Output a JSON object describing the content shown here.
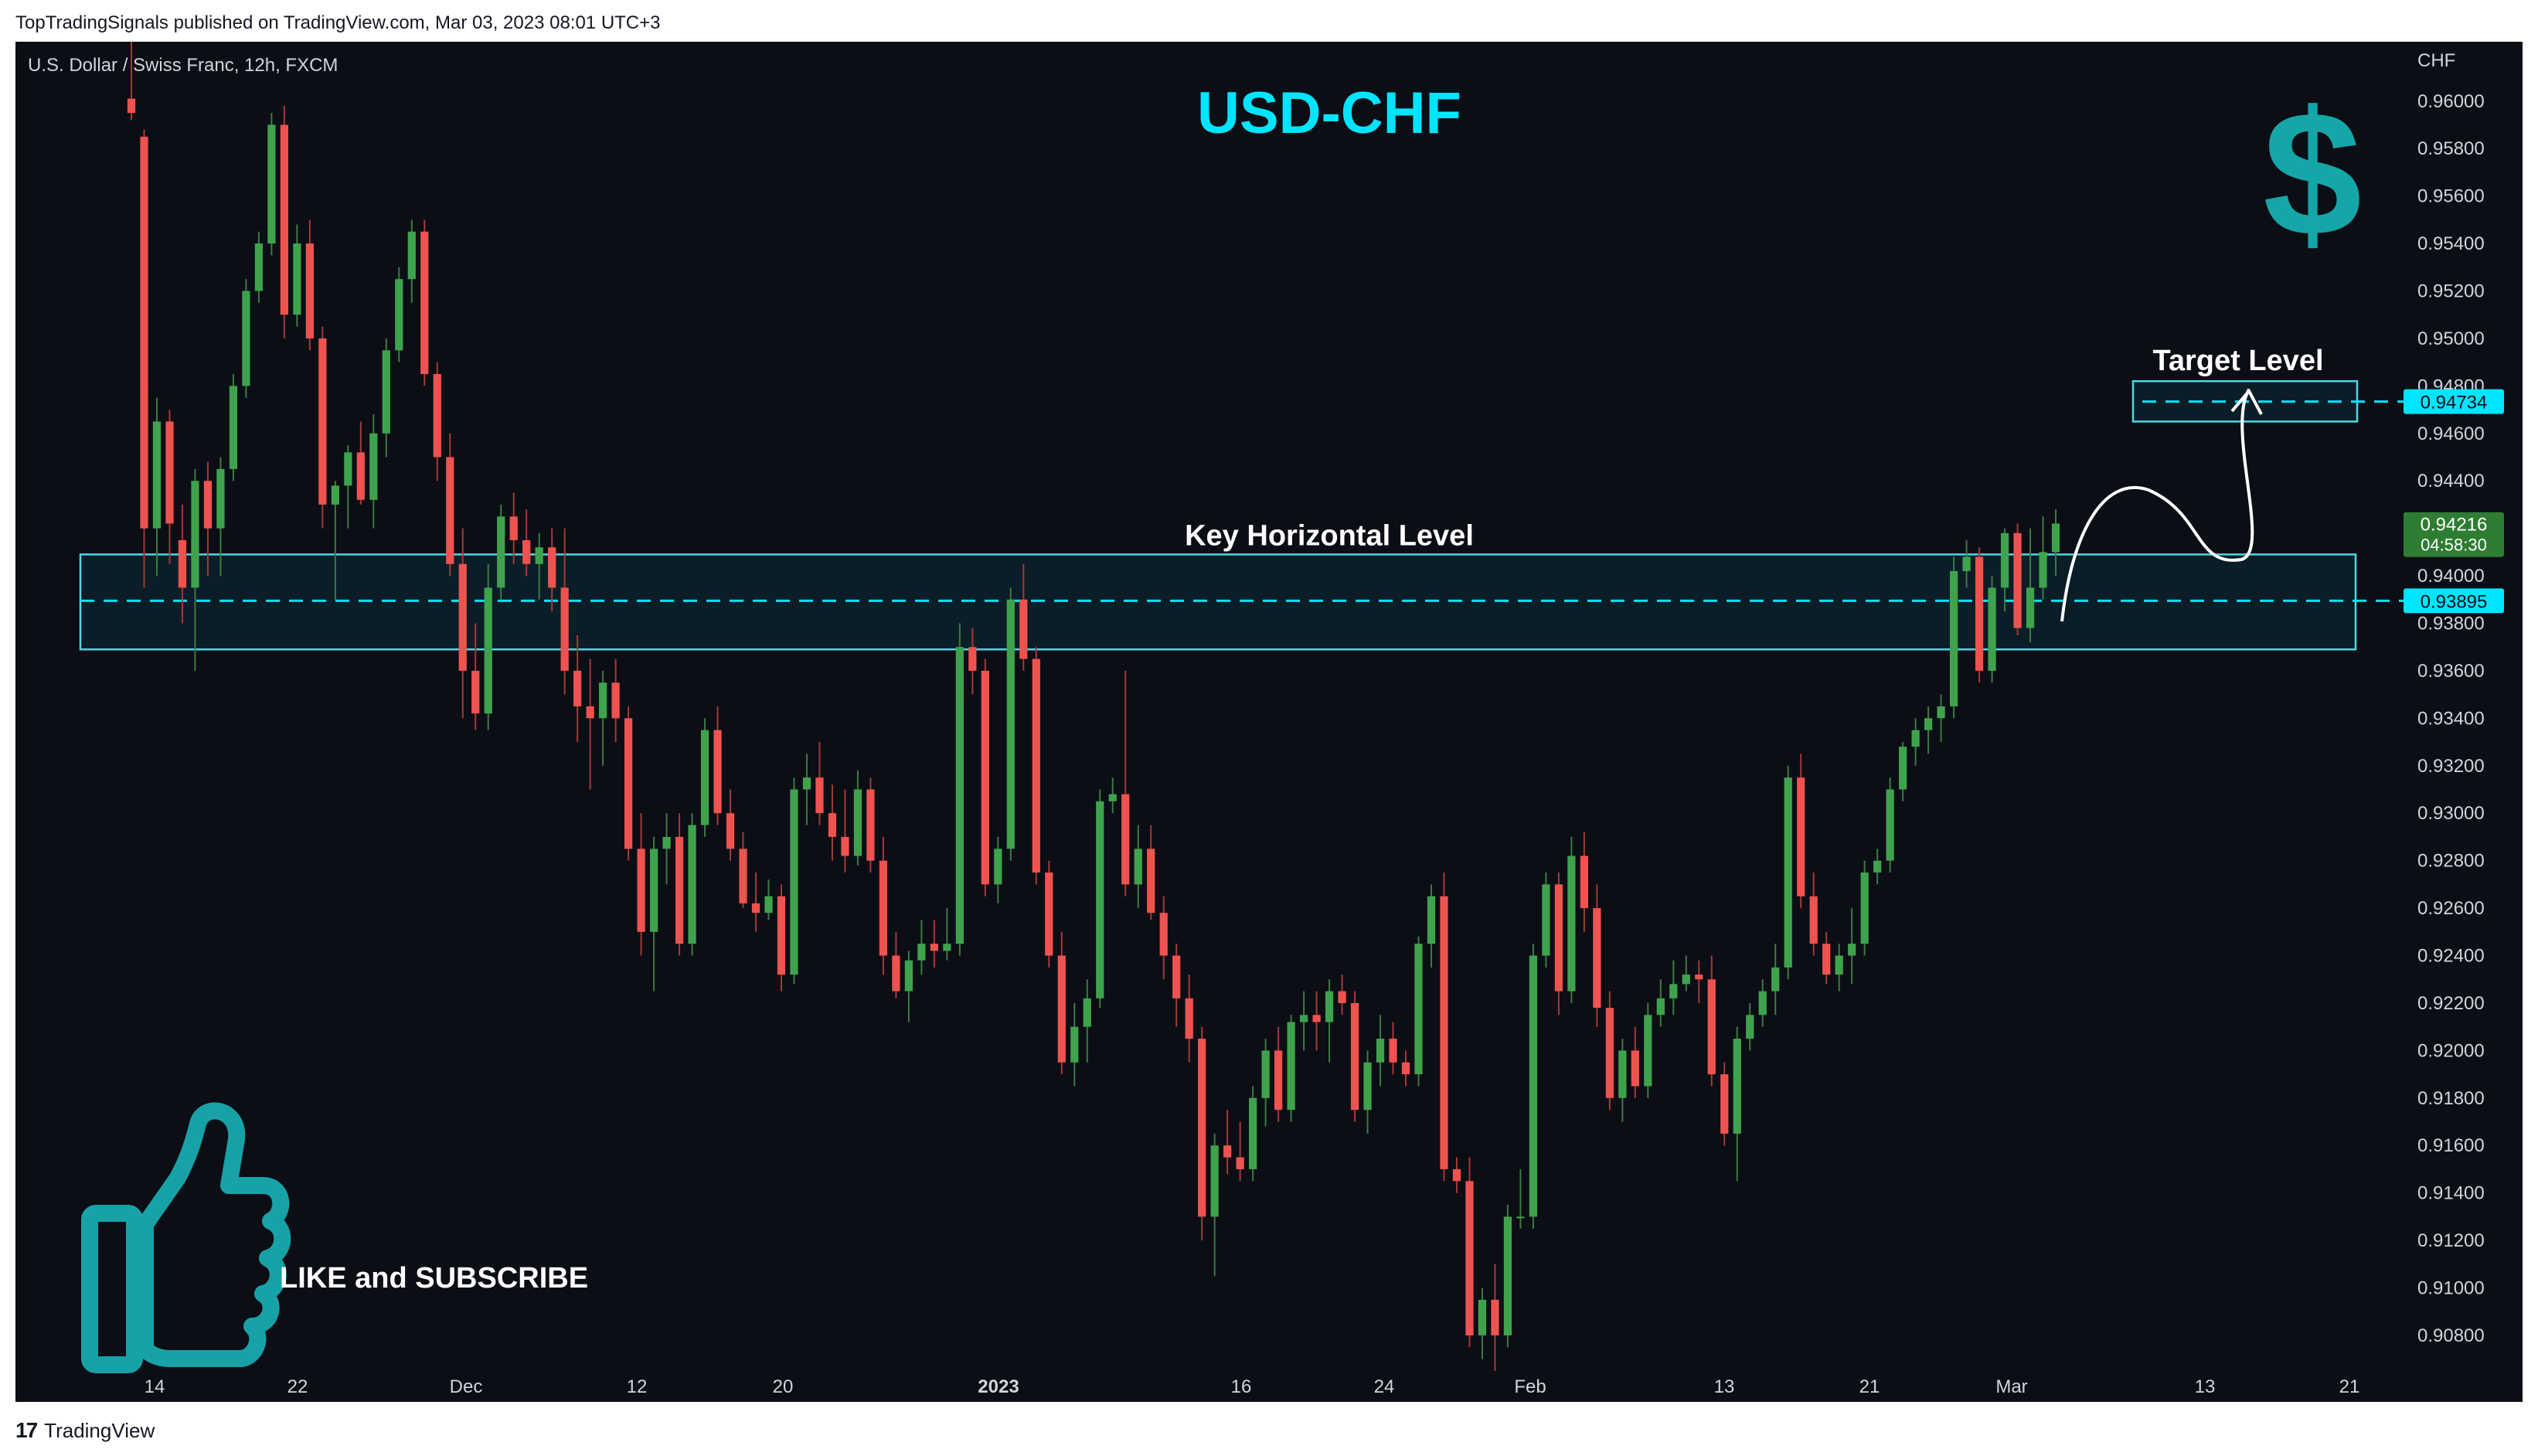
{
  "header": {
    "published": "TopTradingSignals published on TradingView.com, Mar 03, 2023 08:01 UTC+3"
  },
  "footer": {
    "brand": "TradingView",
    "logo_mark": "17"
  },
  "chart": {
    "symbol_info": "U.S. Dollar / Swiss Franc, 12h, FXCM",
    "title": "USD-CHF",
    "currency_label": "CHF",
    "key_level_label": "Key Horizontal Level",
    "target_level_label": "Target Level",
    "cta_text": "LIKE and SUBSCRIBE",
    "icons": [
      "dollar-sign-icon",
      "thumbs-up-icon"
    ],
    "colors": {
      "background": "#0c0e15",
      "up": "#26a69a",
      "up_body": "#3a9a4a",
      "down": "#ef5350",
      "accent": "#00e5ff",
      "price_badge": "#2e7d32"
    },
    "price_labels": {
      "current": "0.94216",
      "countdown": "04:58:30",
      "key_level": "0.93895",
      "target": "0.94734"
    }
  },
  "chart_data": {
    "type": "candlestick",
    "title": "USD-CHF",
    "ylabel": "CHF",
    "ylim": [
      0.9065,
      0.9625
    ],
    "y_ticks": [
      "0.96000",
      "0.95800",
      "0.95600",
      "0.95400",
      "0.95200",
      "0.95000",
      "0.94800",
      "0.94600",
      "0.94400",
      "0.94200",
      "0.94000",
      "0.93800",
      "0.93600",
      "0.93400",
      "0.93200",
      "0.93000",
      "0.92800",
      "0.92600",
      "0.92400",
      "0.92200",
      "0.92000",
      "0.91800",
      "0.91600",
      "0.91400",
      "0.91200",
      "0.91000",
      "0.90800"
    ],
    "x_ticks": [
      "14",
      "22",
      "Dec",
      "12",
      "20",
      "2023",
      "16",
      "24",
      "Feb",
      "13",
      "21",
      "Mar",
      "13",
      "21"
    ],
    "key_level": {
      "value": 0.93895,
      "zone": [
        0.9369,
        0.9409
      ]
    },
    "target_level": {
      "value": 0.94734,
      "zone": [
        0.9465,
        0.9482
      ]
    },
    "current_price": 0.94216,
    "candles_ohlc": [
      [
        0.9601,
        0.963,
        0.9592,
        0.9595
      ],
      [
        0.9585,
        0.9588,
        0.9395,
        0.942
      ],
      [
        0.942,
        0.9475,
        0.94,
        0.9465
      ],
      [
        0.9465,
        0.947,
        0.9405,
        0.9422
      ],
      [
        0.9415,
        0.943,
        0.938,
        0.9395
      ],
      [
        0.9395,
        0.9445,
        0.936,
        0.944
      ],
      [
        0.944,
        0.9448,
        0.94,
        0.942
      ],
      [
        0.942,
        0.945,
        0.94,
        0.9445
      ],
      [
        0.9445,
        0.9485,
        0.944,
        0.948
      ],
      [
        0.948,
        0.9525,
        0.9475,
        0.952
      ],
      [
        0.952,
        0.9545,
        0.9515,
        0.954
      ],
      [
        0.954,
        0.9595,
        0.9535,
        0.959
      ],
      [
        0.959,
        0.9598,
        0.95,
        0.951
      ],
      [
        0.951,
        0.9548,
        0.9505,
        0.954
      ],
      [
        0.954,
        0.955,
        0.9495,
        0.95
      ],
      [
        0.95,
        0.9505,
        0.942,
        0.943
      ],
      [
        0.943,
        0.944,
        0.939,
        0.9438
      ],
      [
        0.9438,
        0.9455,
        0.942,
        0.9452
      ],
      [
        0.9452,
        0.9465,
        0.943,
        0.9432
      ],
      [
        0.9432,
        0.9468,
        0.942,
        0.946
      ],
      [
        0.946,
        0.95,
        0.945,
        0.9495
      ],
      [
        0.9495,
        0.953,
        0.949,
        0.9525
      ],
      [
        0.9525,
        0.955,
        0.9515,
        0.9545
      ],
      [
        0.9545,
        0.955,
        0.948,
        0.9485
      ],
      [
        0.9485,
        0.949,
        0.944,
        0.945
      ],
      [
        0.945,
        0.946,
        0.94,
        0.9405
      ],
      [
        0.9405,
        0.942,
        0.934,
        0.936
      ],
      [
        0.936,
        0.938,
        0.9335,
        0.9342
      ],
      [
        0.9342,
        0.9405,
        0.9335,
        0.9395
      ],
      [
        0.9395,
        0.943,
        0.939,
        0.9425
      ],
      [
        0.9425,
        0.9435,
        0.9405,
        0.9415
      ],
      [
        0.9415,
        0.9428,
        0.94,
        0.9405
      ],
      [
        0.9405,
        0.9418,
        0.939,
        0.9412
      ],
      [
        0.9412,
        0.942,
        0.9385,
        0.9395
      ],
      [
        0.9395,
        0.942,
        0.935,
        0.936
      ],
      [
        0.936,
        0.9375,
        0.933,
        0.9345
      ],
      [
        0.9345,
        0.9365,
        0.931,
        0.934
      ],
      [
        0.934,
        0.936,
        0.932,
        0.9355
      ],
      [
        0.9355,
        0.9365,
        0.933,
        0.934
      ],
      [
        0.934,
        0.9345,
        0.928,
        0.9285
      ],
      [
        0.9285,
        0.93,
        0.924,
        0.925
      ],
      [
        0.925,
        0.929,
        0.9225,
        0.9285
      ],
      [
        0.9285,
        0.93,
        0.927,
        0.929
      ],
      [
        0.929,
        0.93,
        0.924,
        0.9245
      ],
      [
        0.9245,
        0.93,
        0.924,
        0.9295
      ],
      [
        0.9295,
        0.934,
        0.929,
        0.9335
      ],
      [
        0.9335,
        0.9345,
        0.9295,
        0.93
      ],
      [
        0.93,
        0.931,
        0.928,
        0.9285
      ],
      [
        0.9285,
        0.9292,
        0.926,
        0.9262
      ],
      [
        0.9262,
        0.9275,
        0.925,
        0.9258
      ],
      [
        0.9258,
        0.9272,
        0.9255,
        0.9265
      ],
      [
        0.9265,
        0.927,
        0.9225,
        0.9232
      ],
      [
        0.9232,
        0.9315,
        0.9228,
        0.931
      ],
      [
        0.931,
        0.9325,
        0.9295,
        0.9315
      ],
      [
        0.9315,
        0.933,
        0.9295,
        0.93
      ],
      [
        0.93,
        0.9312,
        0.928,
        0.929
      ],
      [
        0.929,
        0.931,
        0.9275,
        0.9282
      ],
      [
        0.9282,
        0.9318,
        0.9278,
        0.931
      ],
      [
        0.931,
        0.9315,
        0.9275,
        0.928
      ],
      [
        0.928,
        0.929,
        0.9232,
        0.924
      ],
      [
        0.924,
        0.925,
        0.9222,
        0.9225
      ],
      [
        0.9225,
        0.9242,
        0.9212,
        0.9238
      ],
      [
        0.9238,
        0.9255,
        0.9232,
        0.9245
      ],
      [
        0.9245,
        0.9255,
        0.9235,
        0.9242
      ],
      [
        0.9242,
        0.926,
        0.9238,
        0.9245
      ],
      [
        0.9245,
        0.938,
        0.924,
        0.937
      ],
      [
        0.937,
        0.9378,
        0.935,
        0.936
      ],
      [
        0.936,
        0.9365,
        0.9265,
        0.927
      ],
      [
        0.927,
        0.929,
        0.9262,
        0.9285
      ],
      [
        0.9285,
        0.9395,
        0.928,
        0.939
      ],
      [
        0.939,
        0.9405,
        0.936,
        0.9365
      ],
      [
        0.9365,
        0.937,
        0.927,
        0.9275
      ],
      [
        0.9275,
        0.928,
        0.9235,
        0.924
      ],
      [
        0.924,
        0.925,
        0.919,
        0.9195
      ],
      [
        0.9195,
        0.922,
        0.9185,
        0.921
      ],
      [
        0.921,
        0.923,
        0.9195,
        0.9222
      ],
      [
        0.9222,
        0.931,
        0.9218,
        0.9305
      ],
      [
        0.9305,
        0.9315,
        0.93,
        0.9308
      ],
      [
        0.9308,
        0.936,
        0.9265,
        0.927
      ],
      [
        0.927,
        0.9295,
        0.926,
        0.9285
      ],
      [
        0.9285,
        0.9295,
        0.9255,
        0.9258
      ],
      [
        0.9258,
        0.9265,
        0.923,
        0.924
      ],
      [
        0.924,
        0.9245,
        0.921,
        0.9222
      ],
      [
        0.9222,
        0.9232,
        0.9195,
        0.9205
      ],
      [
        0.9205,
        0.921,
        0.912,
        0.913
      ],
      [
        0.913,
        0.9165,
        0.9105,
        0.916
      ],
      [
        0.916,
        0.9175,
        0.9148,
        0.9155
      ],
      [
        0.9155,
        0.917,
        0.9145,
        0.915
      ],
      [
        0.915,
        0.9185,
        0.9145,
        0.918
      ],
      [
        0.918,
        0.9205,
        0.9168,
        0.92
      ],
      [
        0.92,
        0.921,
        0.917,
        0.9175
      ],
      [
        0.9175,
        0.9215,
        0.917,
        0.9212
      ],
      [
        0.9212,
        0.9225,
        0.92,
        0.9215
      ],
      [
        0.9215,
        0.9225,
        0.92,
        0.9212
      ],
      [
        0.9212,
        0.923,
        0.9195,
        0.9225
      ],
      [
        0.9225,
        0.9232,
        0.9215,
        0.922
      ],
      [
        0.922,
        0.9225,
        0.917,
        0.9175
      ],
      [
        0.9175,
        0.92,
        0.9165,
        0.9195
      ],
      [
        0.9195,
        0.9215,
        0.9185,
        0.9205
      ],
      [
        0.9205,
        0.9212,
        0.919,
        0.9195
      ],
      [
        0.9195,
        0.92,
        0.9185,
        0.919
      ],
      [
        0.919,
        0.9248,
        0.9185,
        0.9245
      ],
      [
        0.9245,
        0.927,
        0.9235,
        0.9265
      ],
      [
        0.9265,
        0.9275,
        0.9145,
        0.915
      ],
      [
        0.915,
        0.9155,
        0.914,
        0.9145
      ],
      [
        0.9145,
        0.9155,
        0.9075,
        0.908
      ],
      [
        0.908,
        0.91,
        0.907,
        0.9095
      ],
      [
        0.9095,
        0.911,
        0.9065,
        0.908
      ],
      [
        0.908,
        0.9135,
        0.9075,
        0.913
      ],
      [
        0.913,
        0.915,
        0.9125,
        0.913
      ],
      [
        0.913,
        0.9245,
        0.9125,
        0.924
      ],
      [
        0.924,
        0.9275,
        0.9235,
        0.927
      ],
      [
        0.927,
        0.9275,
        0.9215,
        0.9225
      ],
      [
        0.9225,
        0.929,
        0.922,
        0.9282
      ],
      [
        0.9282,
        0.9292,
        0.925,
        0.926
      ],
      [
        0.926,
        0.927,
        0.921,
        0.9218
      ],
      [
        0.9218,
        0.9225,
        0.9175,
        0.918
      ],
      [
        0.918,
        0.9205,
        0.917,
        0.92
      ],
      [
        0.92,
        0.921,
        0.918,
        0.9185
      ],
      [
        0.9185,
        0.922,
        0.918,
        0.9215
      ],
      [
        0.9215,
        0.923,
        0.921,
        0.9222
      ],
      [
        0.9222,
        0.9238,
        0.9215,
        0.9228
      ],
      [
        0.9228,
        0.924,
        0.9225,
        0.9232
      ],
      [
        0.9232,
        0.9238,
        0.922,
        0.923
      ],
      [
        0.923,
        0.924,
        0.9185,
        0.919
      ],
      [
        0.919,
        0.9195,
        0.916,
        0.9165
      ],
      [
        0.9165,
        0.921,
        0.9145,
        0.9205
      ],
      [
        0.9205,
        0.922,
        0.92,
        0.9215
      ],
      [
        0.9215,
        0.923,
        0.921,
        0.9225
      ],
      [
        0.9225,
        0.9245,
        0.9215,
        0.9235
      ],
      [
        0.9235,
        0.932,
        0.923,
        0.9315
      ],
      [
        0.9315,
        0.9325,
        0.926,
        0.9265
      ],
      [
        0.9265,
        0.9275,
        0.924,
        0.9245
      ],
      [
        0.9245,
        0.925,
        0.9228,
        0.9232
      ],
      [
        0.9232,
        0.9245,
        0.9225,
        0.924
      ],
      [
        0.924,
        0.926,
        0.9228,
        0.9245
      ],
      [
        0.9245,
        0.928,
        0.924,
        0.9275
      ],
      [
        0.9275,
        0.9285,
        0.927,
        0.928
      ],
      [
        0.928,
        0.9315,
        0.9275,
        0.931
      ],
      [
        0.931,
        0.933,
        0.9305,
        0.9328
      ],
      [
        0.9328,
        0.934,
        0.932,
        0.9335
      ],
      [
        0.9335,
        0.9345,
        0.9325,
        0.934
      ],
      [
        0.934,
        0.935,
        0.933,
        0.9345
      ],
      [
        0.9345,
        0.9408,
        0.934,
        0.9402
      ],
      [
        0.9402,
        0.9415,
        0.9395,
        0.9408
      ],
      [
        0.9408,
        0.9412,
        0.9355,
        0.936
      ],
      [
        0.936,
        0.94,
        0.9355,
        0.9395
      ],
      [
        0.9395,
        0.942,
        0.9385,
        0.9418
      ],
      [
        0.9418,
        0.9422,
        0.9375,
        0.9378
      ],
      [
        0.9378,
        0.942,
        0.9372,
        0.9395
      ],
      [
        0.9395,
        0.9425,
        0.939,
        0.941
      ],
      [
        0.941,
        0.9428,
        0.94,
        0.9422
      ]
    ]
  }
}
